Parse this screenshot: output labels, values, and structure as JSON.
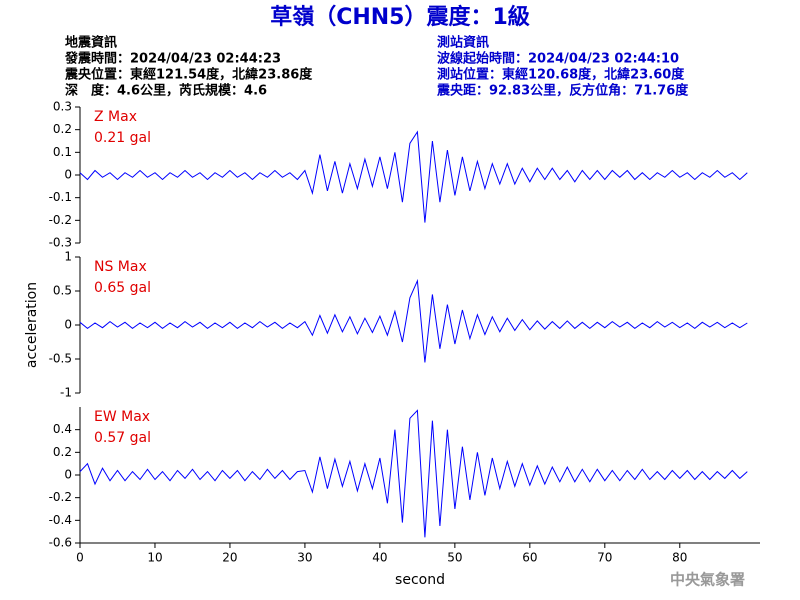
{
  "header": {
    "title": "草嶺（CHN5）震度：1級",
    "left": [
      "地震資訊",
      "發震時間：2024/04/23 02:44:23",
      "震央位置：東經121.54度，北緯23.86度",
      "深　度：4.6公里，芮氏規模：4.6"
    ],
    "right": [
      "測站資訊",
      "波線起始時間：2024/04/23 02:44:10",
      "測站位置：東經120.68度，北緯23.60度",
      "震央距：92.83公里，反方位角：71.76度"
    ]
  },
  "footer": "中央氣象署",
  "chart_data": [
    {
      "type": "line",
      "color": "#0000ff",
      "annotations": [
        "Z Max",
        "0.21 gal"
      ],
      "xlim": [
        0,
        90.7
      ],
      "ylim": [
        -0.3,
        0.3
      ],
      "yticks": [
        -0.3,
        -0.2,
        -0.1,
        0,
        0.1,
        0.2,
        0.3
      ],
      "x": [
        0,
        1,
        2,
        3,
        4,
        5,
        6,
        7,
        8,
        9,
        10,
        11,
        12,
        13,
        14,
        15,
        16,
        17,
        18,
        19,
        20,
        21,
        22,
        23,
        24,
        25,
        26,
        27,
        28,
        29,
        30,
        31,
        32,
        33,
        34,
        35,
        36,
        37,
        38,
        39,
        40,
        41,
        42,
        43,
        44,
        45,
        46,
        47,
        48,
        49,
        50,
        51,
        52,
        53,
        54,
        55,
        56,
        57,
        58,
        59,
        60,
        61,
        62,
        63,
        64,
        65,
        66,
        67,
        68,
        69,
        70,
        71,
        72,
        73,
        74,
        75,
        76,
        77,
        78,
        79,
        80,
        81,
        82,
        83,
        84,
        85,
        86,
        87,
        88,
        89
      ],
      "values": [
        0.01,
        -0.02,
        0.02,
        -0.01,
        0.01,
        -0.02,
        0.01,
        -0.01,
        0.02,
        -0.01,
        0.01,
        -0.02,
        0.01,
        -0.01,
        0.02,
        -0.01,
        0.01,
        -0.02,
        0.01,
        -0.01,
        0.02,
        -0.01,
        0.01,
        -0.02,
        0.01,
        -0.01,
        0.02,
        -0.01,
        0.01,
        -0.02,
        0.02,
        -0.08,
        0.09,
        -0.07,
        0.06,
        -0.08,
        0.05,
        -0.06,
        0.07,
        -0.05,
        0.08,
        -0.06,
        0.1,
        -0.12,
        0.14,
        0.19,
        -0.21,
        0.15,
        -0.12,
        0.11,
        -0.09,
        0.08,
        -0.07,
        0.06,
        -0.06,
        0.05,
        -0.04,
        0.05,
        -0.04,
        0.03,
        -0.03,
        0.03,
        -0.02,
        0.03,
        -0.02,
        0.02,
        -0.03,
        0.02,
        -0.02,
        0.02,
        -0.02,
        0.02,
        -0.01,
        0.02,
        -0.02,
        0.01,
        -0.02,
        0.01,
        -0.01,
        0.02,
        -0.01,
        0.01,
        -0.02,
        0.01,
        -0.01,
        0.02,
        -0.01,
        0.01,
        -0.02,
        0.01
      ]
    },
    {
      "type": "line",
      "color": "#0000ff",
      "annotations": [
        "NS Max",
        "0.65 gal"
      ],
      "ylabel": "acceleration",
      "xlim": [
        0,
        90.7
      ],
      "ylim": [
        -1,
        1
      ],
      "yticks": [
        -1,
        -0.5,
        0,
        0.5,
        1
      ],
      "x": [
        0,
        1,
        2,
        3,
        4,
        5,
        6,
        7,
        8,
        9,
        10,
        11,
        12,
        13,
        14,
        15,
        16,
        17,
        18,
        19,
        20,
        21,
        22,
        23,
        24,
        25,
        26,
        27,
        28,
        29,
        30,
        31,
        32,
        33,
        34,
        35,
        36,
        37,
        38,
        39,
        40,
        41,
        42,
        43,
        44,
        45,
        46,
        47,
        48,
        49,
        50,
        51,
        52,
        53,
        54,
        55,
        56,
        57,
        58,
        59,
        60,
        61,
        62,
        63,
        64,
        65,
        66,
        67,
        68,
        69,
        70,
        71,
        72,
        73,
        74,
        75,
        76,
        77,
        78,
        79,
        80,
        81,
        82,
        83,
        84,
        85,
        86,
        87,
        88,
        89
      ],
      "values": [
        0.04,
        -0.05,
        0.03,
        -0.04,
        0.05,
        -0.03,
        0.04,
        -0.05,
        0.03,
        -0.04,
        0.04,
        -0.05,
        0.03,
        -0.04,
        0.05,
        -0.03,
        0.04,
        -0.05,
        0.03,
        -0.04,
        0.04,
        -0.05,
        0.03,
        -0.04,
        0.05,
        -0.03,
        0.04,
        -0.05,
        0.03,
        -0.04,
        0.05,
        -0.15,
        0.14,
        -0.12,
        0.15,
        -0.1,
        0.12,
        -0.13,
        0.1,
        -0.11,
        0.13,
        -0.15,
        0.2,
        -0.25,
        0.4,
        0.65,
        -0.55,
        0.45,
        -0.35,
        0.3,
        -0.28,
        0.22,
        -0.2,
        0.15,
        -0.14,
        0.12,
        -0.1,
        0.1,
        -0.08,
        0.08,
        -0.07,
        0.06,
        -0.06,
        0.05,
        -0.05,
        0.06,
        -0.05,
        0.04,
        -0.05,
        0.04,
        -0.04,
        0.05,
        -0.03,
        0.04,
        -0.05,
        0.03,
        -0.04,
        0.05,
        -0.03,
        0.04,
        -0.04,
        0.03,
        -0.05,
        0.04,
        -0.03,
        0.04,
        -0.04,
        0.03,
        -0.04,
        0.03
      ]
    },
    {
      "type": "line",
      "color": "#0000ff",
      "annotations": [
        "EW Max",
        "0.57 gal"
      ],
      "xlabel": "second",
      "xlim": [
        0,
        90.7
      ],
      "xticks": [
        0,
        10,
        20,
        30,
        40,
        50,
        60,
        70,
        80
      ],
      "ylim": [
        -0.6,
        0.6
      ],
      "yticks": [
        -0.6,
        -0.4,
        -0.2,
        0,
        0.2,
        0.4
      ],
      "x": [
        0,
        1,
        2,
        3,
        4,
        5,
        6,
        7,
        8,
        9,
        10,
        11,
        12,
        13,
        14,
        15,
        16,
        17,
        18,
        19,
        20,
        21,
        22,
        23,
        24,
        25,
        26,
        27,
        28,
        29,
        30,
        31,
        32,
        33,
        34,
        35,
        36,
        37,
        38,
        39,
        40,
        41,
        42,
        43,
        44,
        45,
        46,
        47,
        48,
        49,
        50,
        51,
        52,
        53,
        54,
        55,
        56,
        57,
        58,
        59,
        60,
        61,
        62,
        63,
        64,
        65,
        66,
        67,
        68,
        69,
        70,
        71,
        72,
        73,
        74,
        75,
        76,
        77,
        78,
        79,
        80,
        81,
        82,
        83,
        84,
        85,
        86,
        87,
        88,
        89
      ],
      "values": [
        0.03,
        0.1,
        -0.08,
        0.06,
        -0.05,
        0.04,
        -0.05,
        0.03,
        -0.04,
        0.05,
        -0.04,
        0.03,
        -0.05,
        0.04,
        -0.03,
        0.05,
        -0.04,
        0.03,
        -0.05,
        0.04,
        -0.03,
        0.04,
        -0.05,
        0.03,
        -0.04,
        0.05,
        -0.03,
        0.04,
        -0.04,
        0.03,
        0.04,
        -0.15,
        0.16,
        -0.12,
        0.14,
        -0.1,
        0.12,
        -0.14,
        0.1,
        -0.12,
        0.15,
        -0.25,
        0.4,
        -0.42,
        0.5,
        0.57,
        -0.55,
        0.48,
        -0.45,
        0.4,
        -0.3,
        0.25,
        -0.22,
        0.2,
        -0.18,
        0.15,
        -0.12,
        0.12,
        -0.1,
        0.1,
        -0.09,
        0.08,
        -0.08,
        0.07,
        -0.06,
        0.07,
        -0.06,
        0.05,
        -0.06,
        0.05,
        -0.05,
        0.04,
        -0.05,
        0.04,
        -0.04,
        0.05,
        -0.04,
        0.03,
        -0.04,
        0.04,
        -0.03,
        0.04,
        -0.04,
        0.03,
        -0.04,
        0.03,
        -0.03,
        0.04,
        -0.03,
        0.03
      ]
    }
  ]
}
